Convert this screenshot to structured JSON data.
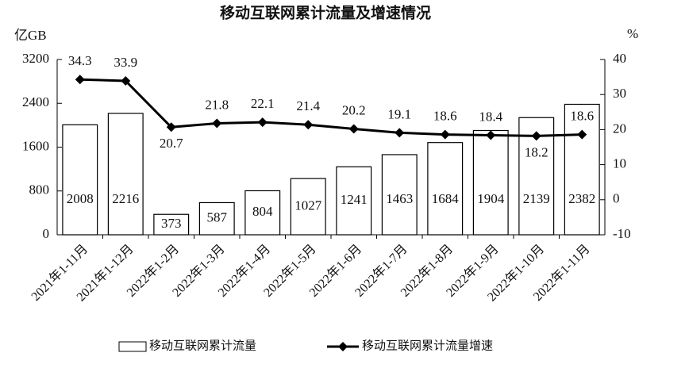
{
  "chart_data": {
    "type": "bar-line",
    "title": "移动互联网累计流量及增速情况",
    "y_label": "亿GB",
    "y2_label": "%",
    "categories": [
      "2021年1-11月",
      "2021年1-12月",
      "2022年1-2月",
      "2022年1-3月",
      "2022年1-4月",
      "2022年1-5月",
      "2022年1-6月",
      "2022年1-7月",
      "2022年1-8月",
      "2022年1-9月",
      "2022年1-10月",
      "2022年1-11月"
    ],
    "series": [
      {
        "name": "移动互联网累计流量",
        "type": "bar",
        "color": "#ffffff",
        "values": [
          2008,
          2216,
          373,
          587,
          804,
          1027,
          1241,
          1463,
          1684,
          1904,
          2139,
          2382
        ]
      },
      {
        "name": "移动互联网累计流量增速",
        "type": "line",
        "axis": "y2",
        "color": "#000000",
        "values": [
          34.3,
          33.9,
          20.7,
          21.8,
          22.1,
          21.4,
          20.2,
          19.1,
          18.6,
          18.4,
          18.2,
          18.6
        ]
      }
    ],
    "ylim": [
      0,
      3200
    ],
    "yticks": [
      0,
      800,
      1600,
      2400,
      3200
    ],
    "y2lim": [
      -10,
      40
    ],
    "y2ticks": [
      -10,
      0,
      10,
      20,
      30,
      40
    ]
  }
}
